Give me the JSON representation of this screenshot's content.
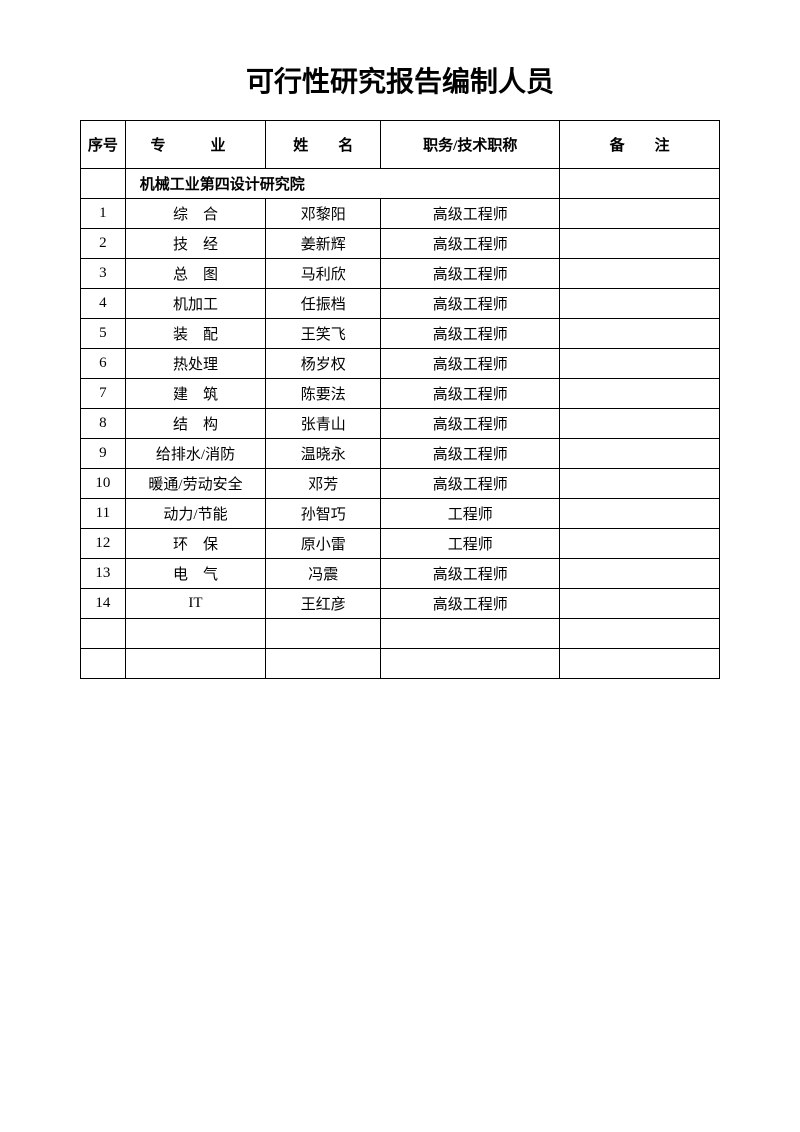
{
  "title": "可行性研究报告编制人员",
  "headers": {
    "seq": "序号",
    "major": "专　业",
    "name": "姓　　名",
    "title": "职务/技术职称",
    "remark": "备　　注"
  },
  "section": "机械工业第四设计研究院",
  "rows": [
    {
      "seq": "1",
      "major": "综　合",
      "major_class": "spaced",
      "name": "邓黎阳",
      "title": "高级工程师",
      "remark": ""
    },
    {
      "seq": "2",
      "major": "技　经",
      "major_class": "spaced",
      "name": "姜新辉",
      "title": "高级工程师",
      "remark": ""
    },
    {
      "seq": "3",
      "major": "总　图",
      "major_class": "spaced",
      "name": "马利欣",
      "title": "高级工程师",
      "remark": ""
    },
    {
      "seq": "4",
      "major": "机加工",
      "major_class": "spaced-2",
      "name": "任振档",
      "title": "高级工程师",
      "remark": ""
    },
    {
      "seq": "5",
      "major": "装　配",
      "major_class": "spaced",
      "name": "王笑飞",
      "title": "高级工程师",
      "remark": ""
    },
    {
      "seq": "6",
      "major": "热处理",
      "major_class": "spaced-2",
      "name": "杨岁权",
      "title": "高级工程师",
      "remark": ""
    },
    {
      "seq": "7",
      "major": "建　筑",
      "major_class": "spaced",
      "name": "陈要法",
      "title": "高级工程师",
      "remark": ""
    },
    {
      "seq": "8",
      "major": "结　构",
      "major_class": "spaced",
      "name": "张青山",
      "title": "高级工程师",
      "remark": ""
    },
    {
      "seq": "9",
      "major": "给排水/消防",
      "major_class": "",
      "name": "温晓永",
      "title": "高级工程师",
      "remark": ""
    },
    {
      "seq": "10",
      "major": "暖通/劳动安全",
      "major_class": "",
      "name": "邓芳",
      "title": "高级工程师",
      "remark": ""
    },
    {
      "seq": "11",
      "major": "动力/节能",
      "major_class": "",
      "name": "孙智巧",
      "title": "工程师",
      "remark": ""
    },
    {
      "seq": "12",
      "major": "环　保",
      "major_class": "spaced",
      "name": "原小雷",
      "title": "工程师",
      "remark": ""
    },
    {
      "seq": "13",
      "major": "电　气",
      "major_class": "spaced",
      "name": "冯震",
      "title": "高级工程师",
      "remark": ""
    },
    {
      "seq": "14",
      "major": "IT",
      "major_class": "",
      "name": "王红彦",
      "title": "高级工程师",
      "remark": ""
    }
  ],
  "empty_rows": 2,
  "colors": {
    "background": "#ffffff",
    "border": "#000000",
    "text": "#000000"
  },
  "font_sizes": {
    "title": 28,
    "body": 15
  }
}
